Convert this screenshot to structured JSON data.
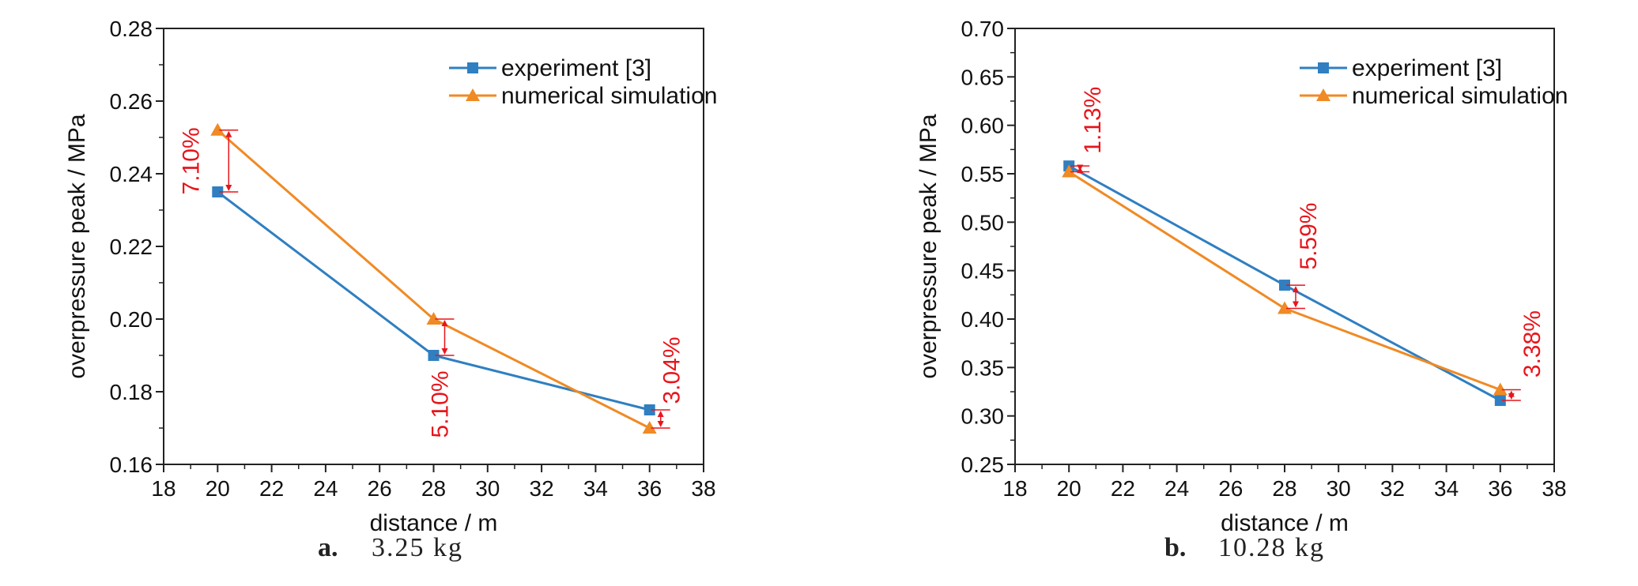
{
  "chart_data": [
    {
      "type": "line",
      "caption_letter": "a.",
      "caption_text": "3.25 kg",
      "xlabel": "distance / m",
      "ylabel": "overpressure peak / MPa",
      "xlim": [
        18,
        38
      ],
      "ylim": [
        0.16,
        0.28
      ],
      "xticks": [
        "18",
        "20",
        "22",
        "24",
        "26",
        "28",
        "30",
        "32",
        "34",
        "36",
        "38"
      ],
      "yticks": [
        "0.16",
        "0.18",
        "0.20",
        "0.22",
        "0.24",
        "0.26",
        "0.28"
      ],
      "legend_position": "top-right",
      "series": [
        {
          "name": "experiment [3]",
          "marker": "square",
          "color": "#2f7fc1",
          "x": [
            20,
            28,
            36
          ],
          "y": [
            0.235,
            0.19,
            0.175
          ]
        },
        {
          "name": "numerical simulation",
          "marker": "triangle",
          "color": "#f08a24",
          "x": [
            20,
            28,
            36
          ],
          "y": [
            0.252,
            0.2,
            0.17
          ]
        }
      ],
      "annotations": [
        {
          "text": "7.10%",
          "x": 20,
          "from": 0.235,
          "to": 0.252
        },
        {
          "text": "5.10%",
          "x": 28,
          "from": 0.19,
          "to": 0.2
        },
        {
          "text": "3.04%",
          "x": 36,
          "from": 0.17,
          "to": 0.175
        }
      ]
    },
    {
      "type": "line",
      "caption_letter": "b.",
      "caption_text": "10.28 kg",
      "xlabel": "distance / m",
      "ylabel": "overpressure peak / MPa",
      "xlim": [
        18,
        38
      ],
      "ylim": [
        0.25,
        0.7
      ],
      "xticks": [
        "18",
        "20",
        "22",
        "24",
        "26",
        "28",
        "30",
        "32",
        "34",
        "36",
        "38"
      ],
      "yticks": [
        "0.25",
        "0.30",
        "0.35",
        "0.40",
        "0.45",
        "0.50",
        "0.55",
        "0.60",
        "0.65",
        "0.70"
      ],
      "legend_position": "top-right",
      "series": [
        {
          "name": "experiment [3]",
          "marker": "square",
          "color": "#2f7fc1",
          "x": [
            20,
            28,
            36
          ],
          "y": [
            0.558,
            0.435,
            0.316
          ]
        },
        {
          "name": "numerical simulation",
          "marker": "triangle",
          "color": "#f08a24",
          "x": [
            20,
            28,
            36
          ],
          "y": [
            0.552,
            0.411,
            0.327
          ]
        }
      ],
      "annotations": [
        {
          "text": "1.13%",
          "x": 20,
          "from": 0.552,
          "to": 0.558
        },
        {
          "text": "5.59%",
          "x": 28,
          "from": 0.411,
          "to": 0.435
        },
        {
          "text": "3.38%",
          "x": 36,
          "from": 0.316,
          "to": 0.327
        }
      ]
    }
  ]
}
